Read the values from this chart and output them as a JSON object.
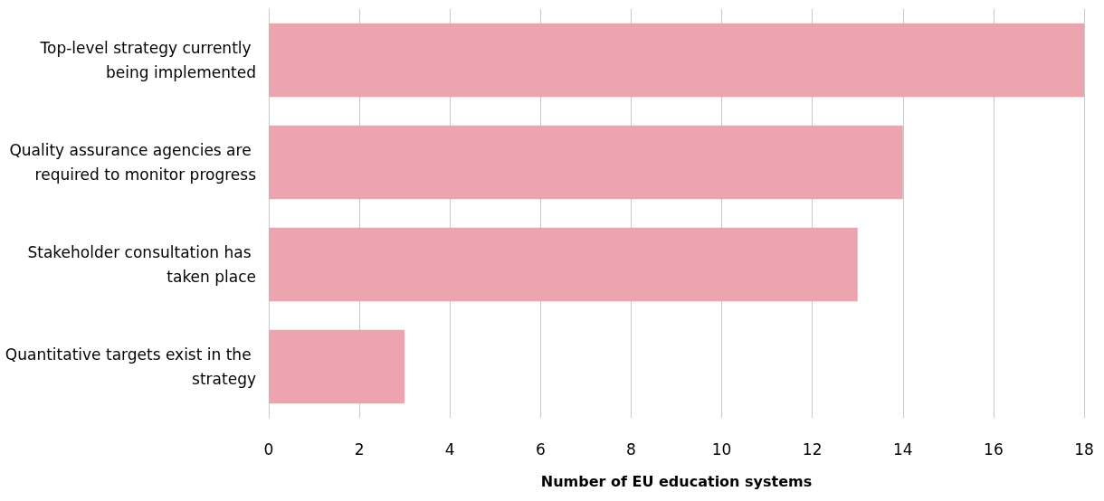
{
  "chart_data": {
    "type": "bar",
    "orientation": "horizontal",
    "xlabel": "Number of EU education systems",
    "categories": [
      "Top-level strategy currently being implemented",
      "Quality assurance agencies are required to monitor progress",
      "Stakeholder consultation has taken place",
      "Quantitative targets exist in the strategy"
    ],
    "values": [
      18,
      14,
      13,
      3
    ],
    "color": "#eca4ae",
    "xlim": [
      0,
      18
    ],
    "xticks": [
      0,
      2,
      4,
      6,
      8,
      10,
      12,
      14,
      16,
      18
    ],
    "grid": "x"
  }
}
